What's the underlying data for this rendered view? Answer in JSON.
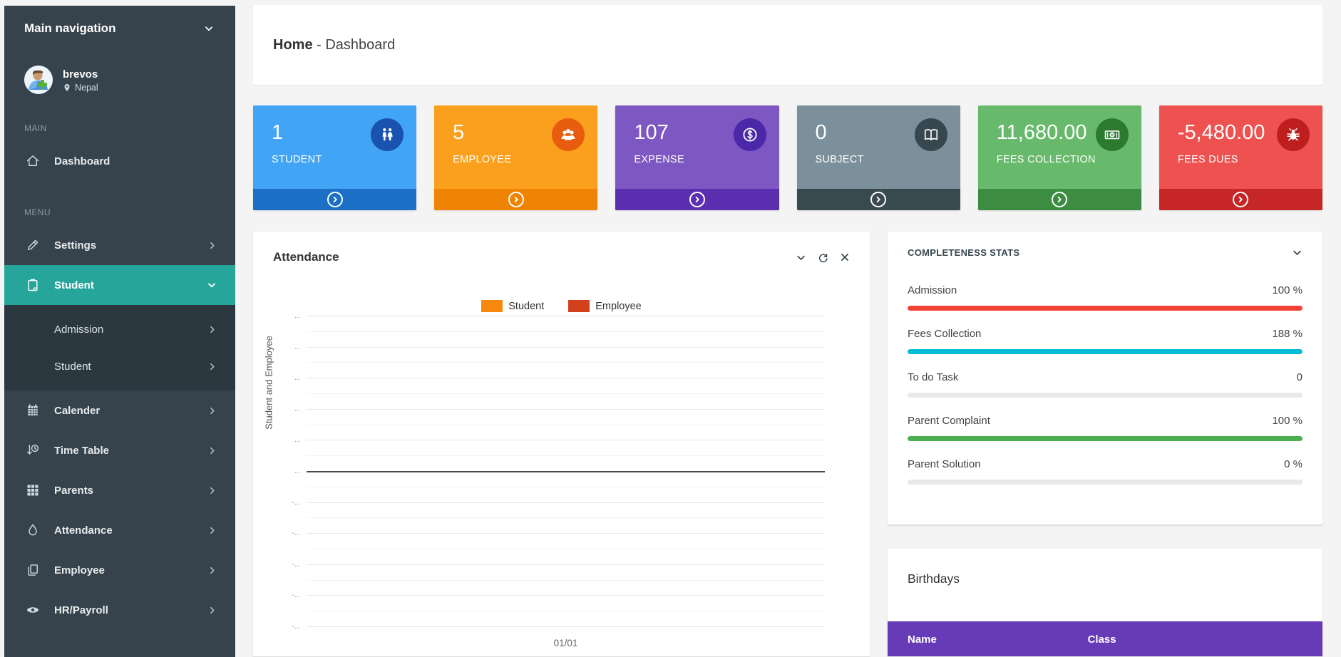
{
  "sidebar": {
    "title": "Main navigation",
    "user": {
      "name": "brevos",
      "location": "Nepal"
    },
    "sections": [
      {
        "label": "MAIN",
        "items": [
          {
            "label": "Dashboard",
            "icon": "home-icon"
          }
        ]
      },
      {
        "label": "MENU",
        "items": [
          {
            "label": "Settings",
            "icon": "pencil-icon",
            "chevron": "right"
          },
          {
            "label": "Student",
            "icon": "clipboard-icon",
            "chevron": "down",
            "active": true,
            "children": [
              {
                "label": "Admission",
                "chevron": "right"
              },
              {
                "label": "Student",
                "chevron": "right"
              }
            ]
          },
          {
            "label": "Calender",
            "icon": "calendar-icon",
            "chevron": "right"
          },
          {
            "label": "Time Table",
            "icon": "timetable-icon",
            "chevron": "right"
          },
          {
            "label": "Parents",
            "icon": "grid-icon",
            "chevron": "right"
          },
          {
            "label": "Attendance",
            "icon": "droplet-icon",
            "chevron": "right"
          },
          {
            "label": "Employee",
            "icon": "pages-icon",
            "chevron": "right"
          },
          {
            "label": "HR/Payroll",
            "icon": "eye-icon",
            "chevron": "right"
          }
        ]
      }
    ],
    "colors": {
      "background": "#36434C",
      "submenu": "#2C3840",
      "active": "#26A69A"
    }
  },
  "breadcrumb": {
    "home": "Home",
    "rest": " - Dashboard"
  },
  "stat_cards": [
    {
      "value": "1",
      "label": "STUDENT",
      "icon": "male-female-icon",
      "bg": "#42A4F4",
      "footer_bg": "#1B70C5",
      "badge_bg": "#1A52B0"
    },
    {
      "value": "5",
      "label": "EMPLOYEE",
      "icon": "users-group-icon",
      "bg": "#FBA01D",
      "footer_bg": "#EF8404",
      "badge_bg": "#E85C0F"
    },
    {
      "value": "107",
      "label": "EXPENSE",
      "icon": "dollar-circle-icon",
      "bg": "#7D57C2",
      "footer_bg": "#5B2EB0",
      "badge_bg": "#4B28A8"
    },
    {
      "value": "0",
      "label": "SUBJECT",
      "icon": "open-book-icon",
      "bg": "#7B909B",
      "footer_bg": "#394950",
      "badge_bg": "#37474F"
    },
    {
      "value": "11,680.00",
      "label": "FEES COLLECTION",
      "icon": "banknote-icon",
      "bg": "#67BA6B",
      "footer_bg": "#3C8D41",
      "badge_bg": "#2C7A30"
    },
    {
      "value": "-5,480.00",
      "label": "FEES DUES",
      "icon": "bug-icon",
      "bg": "#EE5250",
      "footer_bg": "#C62626",
      "badge_bg": "#BF1E1E"
    }
  ],
  "attendance_panel": {
    "title": "Attendance"
  },
  "chart_data": {
    "type": "line",
    "title": "Attendance",
    "x_categories": [
      "01/01"
    ],
    "series": [
      {
        "name": "Student",
        "color": "#F6870F",
        "values": [
          0
        ]
      },
      {
        "name": "Employee",
        "color": "#D1411C",
        "values": [
          0
        ]
      }
    ],
    "ylabel": "Student and Employee",
    "xlabel": "",
    "y_tick_labels": [
      "...",
      "...",
      "...",
      "...",
      "...",
      "...",
      "-...",
      "-...",
      "-...",
      "-...",
      "-..."
    ],
    "zero_line_index": 5,
    "grid": true,
    "legend_position": "top"
  },
  "completeness": {
    "title": "COMPLETENESS STATS",
    "rows": [
      {
        "label": "Admission",
        "value": "100 %",
        "percent": 100,
        "color": "#F44336"
      },
      {
        "label": "Fees Collection",
        "value": "188 %",
        "percent": 100,
        "color": "#00BCD4"
      },
      {
        "label": "To do Task",
        "value": "0",
        "percent": 0,
        "color": "#E9E9E9"
      },
      {
        "label": "Parent Complaint",
        "value": "100 %",
        "percent": 100,
        "color": "#4CAF50"
      },
      {
        "label": "Parent Solution",
        "value": "0 %",
        "percent": 0,
        "color": "#E9E9E9"
      }
    ],
    "track_color": "#E9E9E9"
  },
  "birthdays": {
    "title": "Birthdays",
    "columns": [
      "Name",
      "Class"
    ],
    "header_bg": "#673AB7",
    "rows": []
  }
}
